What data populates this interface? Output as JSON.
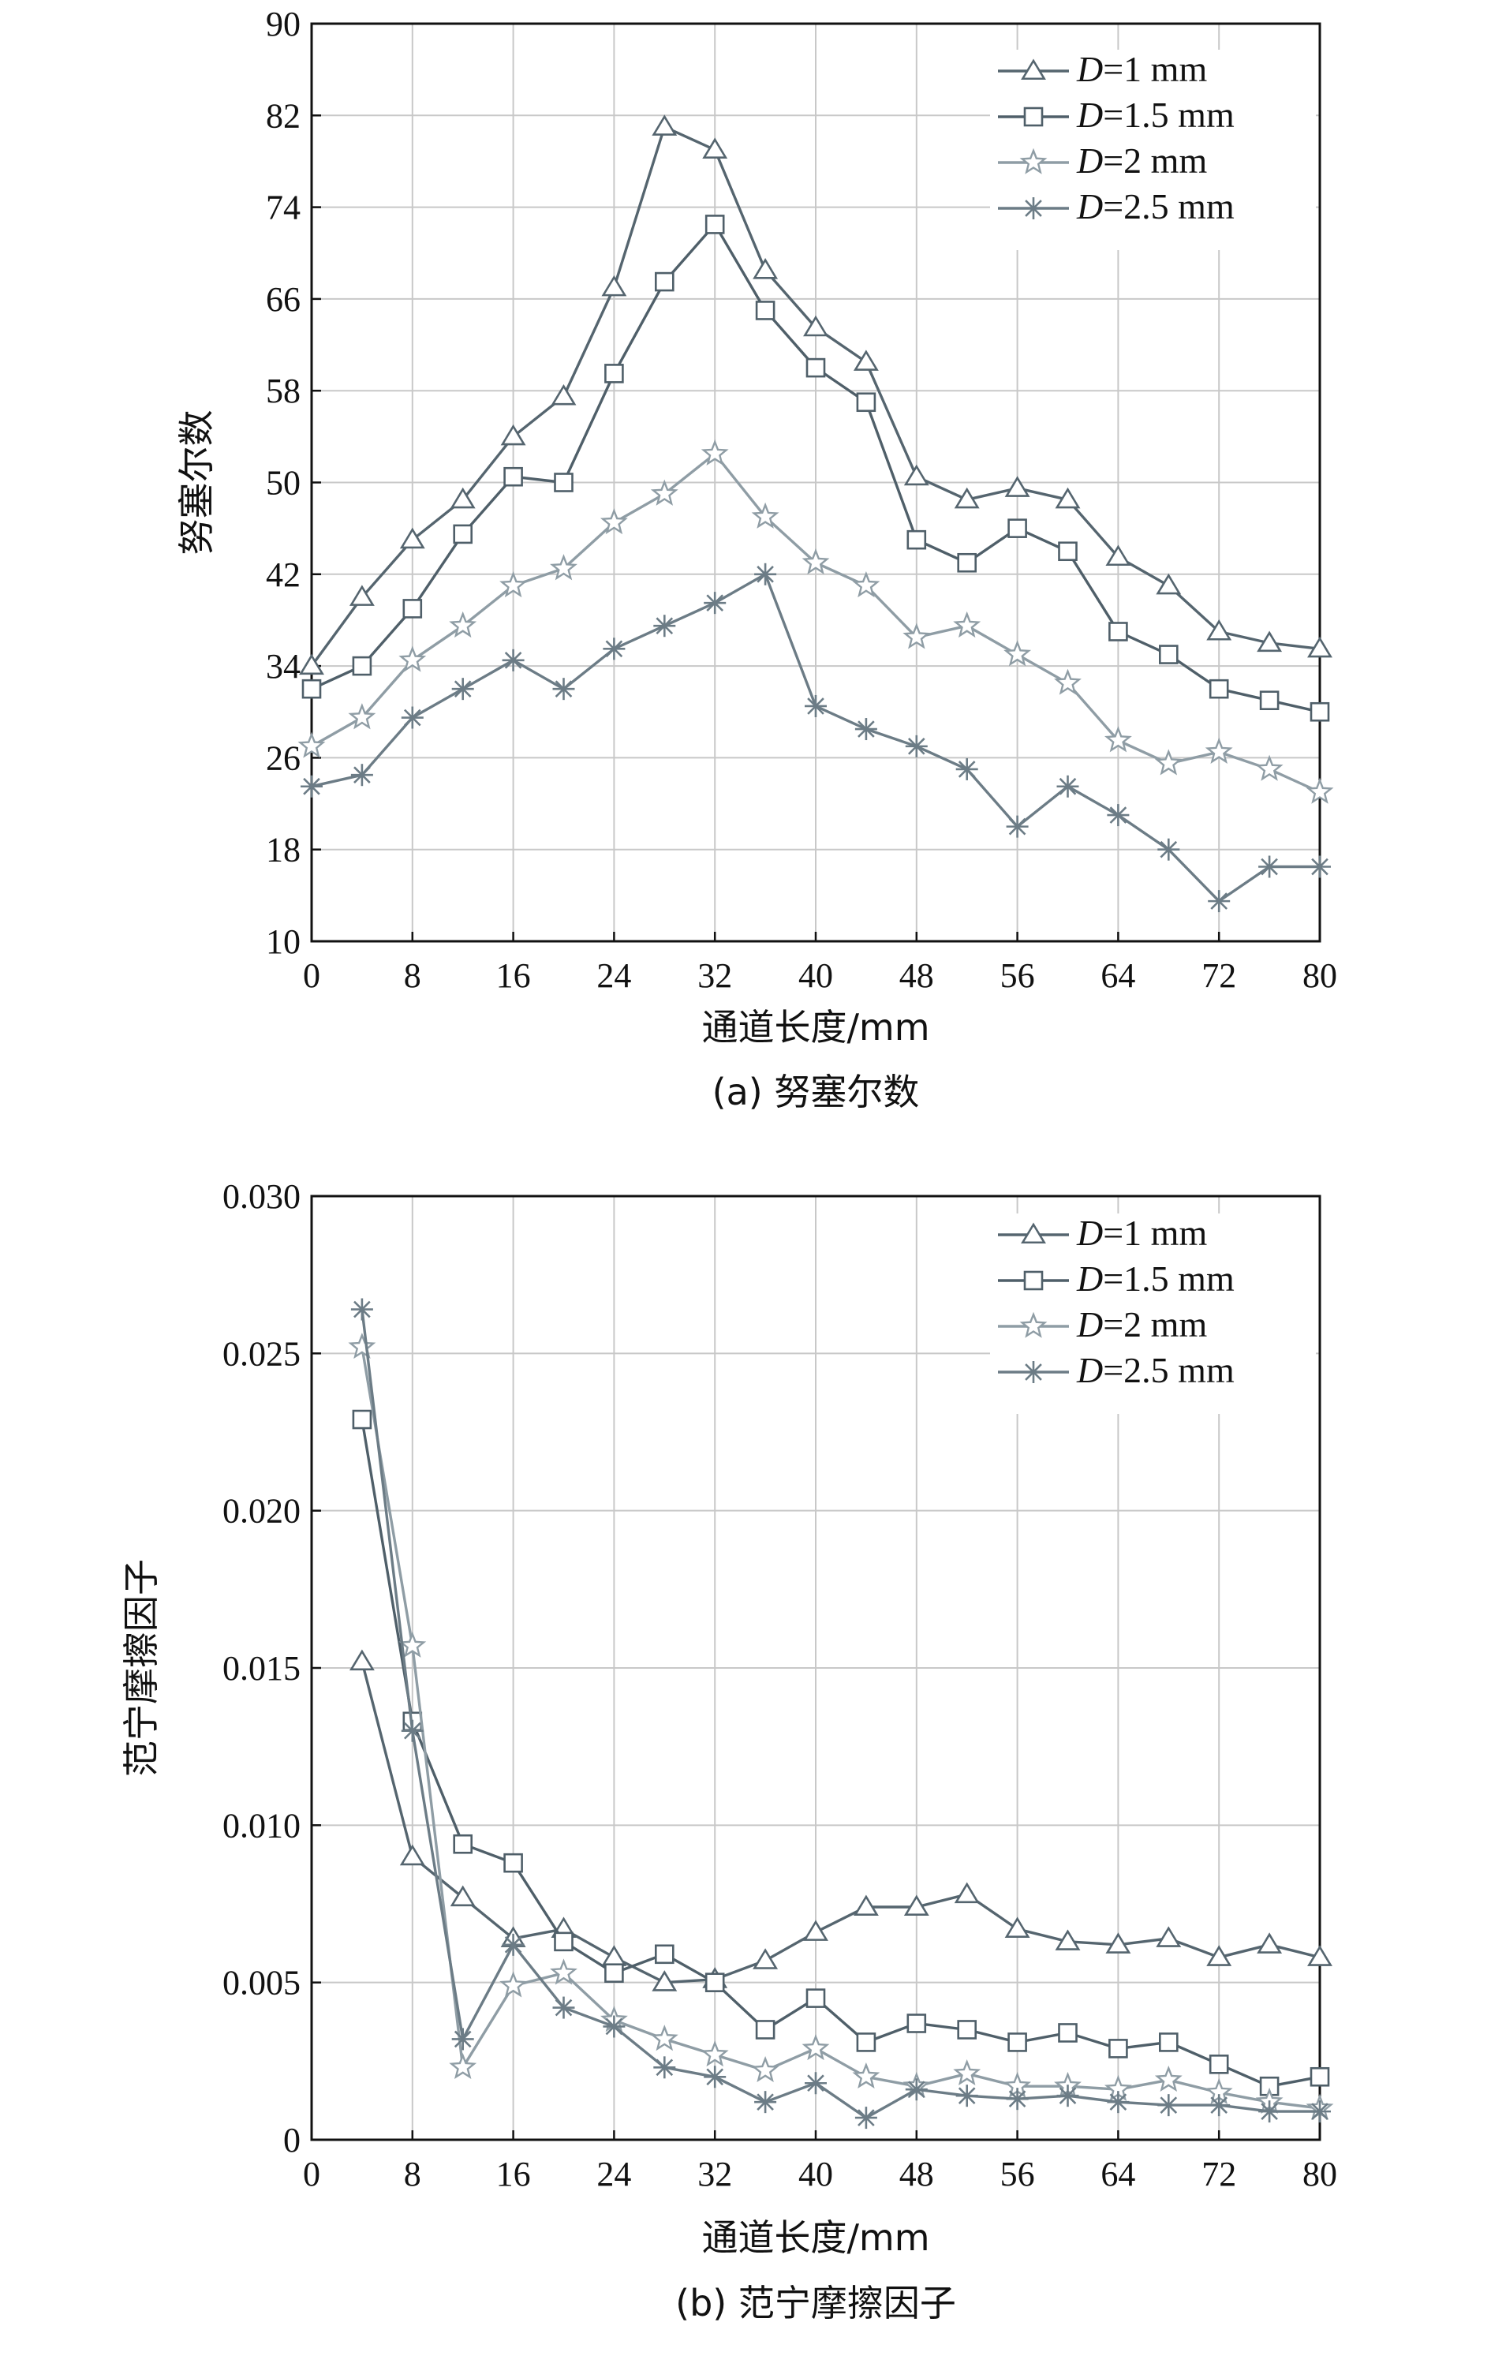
{
  "chart_data": [
    {
      "type": "line",
      "panel_caption": "(a) 努塞尔数",
      "xlabel": "通道长度/mm",
      "ylabel": "努塞尔数",
      "xlim": [
        0,
        80
      ],
      "ylim": [
        10,
        90
      ],
      "xticks": [
        0,
        8,
        16,
        24,
        32,
        40,
        48,
        56,
        64,
        72,
        80
      ],
      "yticks": [
        10,
        18,
        26,
        34,
        42,
        50,
        58,
        66,
        74,
        82,
        90
      ],
      "grid": true,
      "legend_position": "top-right",
      "series": [
        {
          "name": "D=1 mm",
          "marker": "triangle",
          "color": "#55656f",
          "x": [
            0,
            4,
            8,
            12,
            16,
            20,
            24,
            28,
            32,
            36,
            40,
            44,
            48,
            52,
            56,
            60,
            64,
            68,
            72,
            76,
            80
          ],
          "y": [
            34,
            40,
            45,
            48.5,
            54,
            57.5,
            67,
            81,
            79,
            68.5,
            63.5,
            60.5,
            50.5,
            48.5,
            49.5,
            48.5,
            43.5,
            41,
            37,
            36,
            35.5
          ]
        },
        {
          "name": "D=1.5 mm",
          "marker": "square",
          "color": "#4f5f69",
          "x": [
            0,
            4,
            8,
            12,
            16,
            20,
            24,
            28,
            32,
            36,
            40,
            44,
            48,
            52,
            56,
            60,
            64,
            68,
            72,
            76,
            80
          ],
          "y": [
            32,
            34,
            39,
            45.5,
            50.5,
            50,
            59.5,
            67.5,
            72.5,
            65,
            60,
            57,
            45,
            43,
            46,
            44,
            37,
            35,
            32,
            31,
            30
          ]
        },
        {
          "name": "D=2 mm",
          "marker": "star",
          "color": "#8f9da5",
          "x": [
            0,
            4,
            8,
            12,
            16,
            20,
            24,
            28,
            32,
            36,
            40,
            44,
            48,
            52,
            56,
            60,
            64,
            68,
            72,
            76,
            80
          ],
          "y": [
            27,
            29.5,
            34.5,
            37.5,
            41,
            42.5,
            46.5,
            49,
            52.5,
            47,
            43,
            41,
            36.5,
            37.5,
            35,
            32.5,
            27.5,
            25.5,
            26.5,
            25,
            23
          ]
        },
        {
          "name": "D=2.5 mm",
          "marker": "asterisk",
          "color": "#6c7c86",
          "x": [
            0,
            4,
            8,
            12,
            16,
            20,
            24,
            28,
            32,
            36,
            40,
            44,
            48,
            52,
            56,
            60,
            64,
            68,
            72,
            76,
            80
          ],
          "y": [
            23.5,
            24.5,
            29.5,
            32,
            34.5,
            32,
            35.5,
            37.5,
            39.5,
            42,
            30.5,
            28.5,
            27,
            25,
            20,
            23.5,
            21,
            18,
            13.5,
            16.5,
            16.5
          ]
        }
      ]
    },
    {
      "type": "line",
      "panel_caption": "(b) 范宁摩擦因子",
      "xlabel": "通道长度/mm",
      "ylabel": "范宁摩擦因子",
      "xlim": [
        0,
        80
      ],
      "ylim": [
        0,
        0.03
      ],
      "xticks": [
        0,
        8,
        16,
        24,
        32,
        40,
        48,
        56,
        64,
        72,
        80
      ],
      "yticks": [
        0,
        0.005,
        0.01,
        0.015,
        0.02,
        0.025,
        0.03
      ],
      "ytick_labels": [
        "0",
        "0.005",
        "0.010",
        "0.015",
        "0.020",
        "0.025",
        "0.030"
      ],
      "grid": true,
      "legend_position": "top-right",
      "series": [
        {
          "name": "D=1 mm",
          "marker": "triangle",
          "color": "#55656f",
          "x": [
            4,
            8,
            12,
            16,
            20,
            24,
            28,
            32,
            36,
            40,
            44,
            48,
            52,
            56,
            60,
            64,
            68,
            72,
            76,
            80
          ],
          "y": [
            0.0152,
            0.009,
            0.0077,
            0.0064,
            0.0067,
            0.0058,
            0.005,
            0.0051,
            0.0057,
            0.0066,
            0.0074,
            0.0074,
            0.0078,
            0.0067,
            0.0063,
            0.0062,
            0.0064,
            0.0058,
            0.0062,
            0.0058
          ]
        },
        {
          "name": "D=1.5 mm",
          "marker": "square",
          "color": "#4f5f69",
          "x": [
            4,
            8,
            12,
            16,
            20,
            24,
            28,
            32,
            36,
            40,
            44,
            48,
            52,
            56,
            60,
            64,
            68,
            72,
            76,
            80
          ],
          "y": [
            0.0229,
            0.0133,
            0.0094,
            0.0088,
            0.0063,
            0.0053,
            0.0059,
            0.005,
            0.0035,
            0.0045,
            0.0031,
            0.0037,
            0.0035,
            0.0031,
            0.0034,
            0.0029,
            0.0031,
            0.0024,
            0.0017,
            0.002
          ]
        },
        {
          "name": "D=2 mm",
          "marker": "star",
          "color": "#8f9da5",
          "x": [
            4,
            8,
            12,
            16,
            20,
            24,
            28,
            32,
            36,
            40,
            44,
            48,
            52,
            56,
            60,
            64,
            68,
            72,
            76,
            80
          ],
          "y": [
            0.0252,
            0.0157,
            0.0023,
            0.0049,
            0.0053,
            0.0038,
            0.0032,
            0.0027,
            0.0022,
            0.0029,
            0.002,
            0.0017,
            0.0021,
            0.0017,
            0.0017,
            0.0016,
            0.0019,
            0.0015,
            0.0012,
            0.001
          ]
        },
        {
          "name": "D=2.5 mm",
          "marker": "asterisk",
          "color": "#6c7c86",
          "x": [
            4,
            8,
            12,
            16,
            20,
            24,
            28,
            32,
            36,
            40,
            44,
            48,
            52,
            56,
            60,
            64,
            68,
            72,
            76,
            80
          ],
          "y": [
            0.0264,
            0.013,
            0.0032,
            0.0062,
            0.0042,
            0.0036,
            0.0023,
            0.002,
            0.0012,
            0.0018,
            0.0007,
            0.0016,
            0.0014,
            0.0013,
            0.0014,
            0.0012,
            0.0011,
            0.0011,
            0.0009,
            0.0009
          ]
        }
      ]
    }
  ]
}
